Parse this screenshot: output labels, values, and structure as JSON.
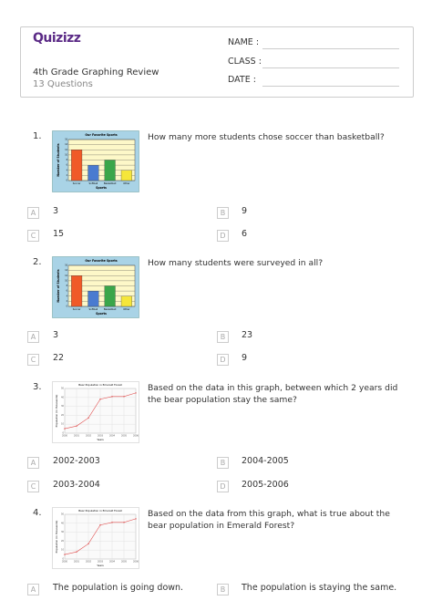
{
  "header": {
    "logo": "Quizizz",
    "title": "4th Grade Graphing Review",
    "subtitle": "13 Questions",
    "fields": [
      "NAME :",
      "CLASS :",
      "DATE :"
    ]
  },
  "questions": [
    {
      "number": "1.",
      "text": "How many more students chose soccer than basketball?",
      "chart": {
        "type": "bar",
        "title": "Our Favorite Sports",
        "xlabel": "Sports",
        "ylabel": "Number of Students",
        "categories": [
          "Soccer",
          "Softball",
          "Basketball",
          "Other"
        ],
        "values": [
          12,
          6,
          8,
          4
        ],
        "colors": [
          "#f05a28",
          "#4a7bd0",
          "#3aa64a",
          "#f5e63a"
        ],
        "ylim": [
          0,
          16
        ],
        "yticks": [
          0,
          2,
          4,
          6,
          8,
          10,
          12,
          14,
          16
        ]
      },
      "options": [
        {
          "letter": "A",
          "text": "3"
        },
        {
          "letter": "B",
          "text": "9"
        },
        {
          "letter": "C",
          "text": "15"
        },
        {
          "letter": "D",
          "text": "6"
        }
      ]
    },
    {
      "number": "2.",
      "text": "How many students were surveyed in all?",
      "chart": {
        "type": "bar",
        "title": "Our Favorite Sports",
        "xlabel": "Sports",
        "ylabel": "Number of Students",
        "categories": [
          "Soccer",
          "Softball",
          "Basketball",
          "Other"
        ],
        "values": [
          12,
          6,
          8,
          4
        ],
        "colors": [
          "#f05a28",
          "#4a7bd0",
          "#3aa64a",
          "#f5e63a"
        ],
        "ylim": [
          0,
          16
        ],
        "yticks": [
          0,
          2,
          4,
          6,
          8,
          10,
          12,
          14,
          16
        ]
      },
      "options": [
        {
          "letter": "A",
          "text": "3"
        },
        {
          "letter": "B",
          "text": "23"
        },
        {
          "letter": "C",
          "text": "22"
        },
        {
          "letter": "D",
          "text": "9"
        }
      ]
    },
    {
      "number": "3.",
      "text": "Based on the data in this graph, between which 2 years did the bear population stay the same?",
      "chart": {
        "type": "line",
        "title": "Bear Population in Emerald Forest",
        "xlabel": "Years",
        "ylabel": "Population (in thousands)",
        "x": [
          2000,
          2001,
          2002,
          2003,
          2004,
          2005,
          2006
        ],
        "values": [
          5,
          8,
          17,
          38,
          41,
          41,
          45
        ],
        "color": "#e05050",
        "xlim": [
          2000,
          2006
        ],
        "xticks": [
          2000,
          2001,
          2002,
          2003,
          2004,
          2005,
          2006
        ],
        "ylim": [
          0,
          50
        ],
        "yticks": [
          0,
          10,
          20,
          30,
          40,
          50
        ]
      },
      "options": [
        {
          "letter": "A",
          "text": "2002-2003"
        },
        {
          "letter": "B",
          "text": "2004-2005"
        },
        {
          "letter": "C",
          "text": "2003-2004"
        },
        {
          "letter": "D",
          "text": "2005-2006"
        }
      ]
    },
    {
      "number": "4.",
      "text": "Based on the data from this graph, what is true about the bear population in Emerald Forest?",
      "chart": {
        "type": "line",
        "title": "Bear Population in Emerald Forest",
        "xlabel": "Years",
        "ylabel": "Population (in thousands)",
        "x": [
          2000,
          2001,
          2002,
          2003,
          2004,
          2005,
          2006
        ],
        "values": [
          5,
          8,
          17,
          38,
          41,
          41,
          45
        ],
        "color": "#e05050",
        "xlim": [
          2000,
          2006
        ],
        "xticks": [
          2000,
          2001,
          2002,
          2003,
          2004,
          2005,
          2006
        ],
        "ylim": [
          0,
          50
        ],
        "yticks": [
          0,
          10,
          20,
          30,
          40,
          50
        ]
      },
      "options": [
        {
          "letter": "A",
          "text": "The population is going down."
        },
        {
          "letter": "B",
          "text": "The population is staying the same."
        }
      ]
    }
  ]
}
